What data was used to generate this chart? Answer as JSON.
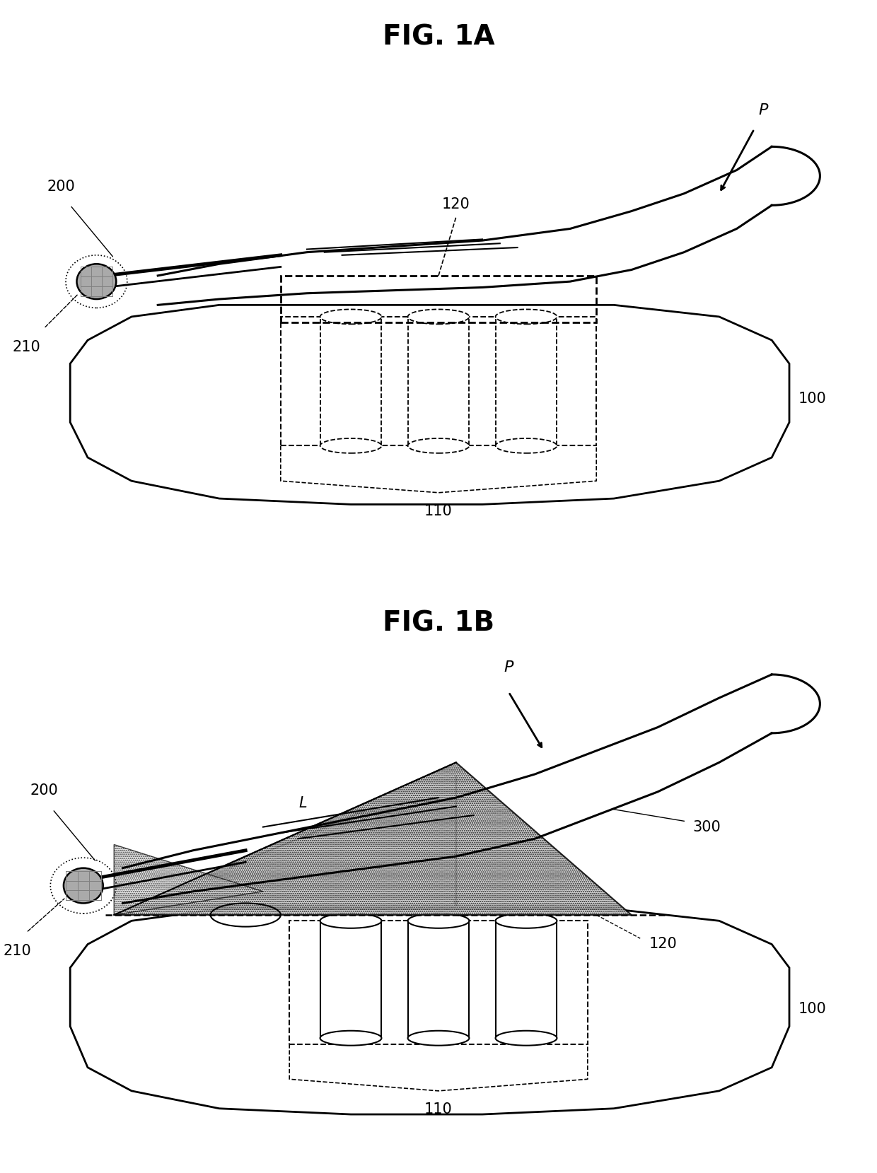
{
  "fig1a_title": "FIG. 1A",
  "fig1b_title": "FIG. 1B",
  "label_100": "100",
  "label_110": "110",
  "label_120": "120",
  "label_200": "200",
  "label_210": "210",
  "label_300": "300",
  "label_L": "L",
  "label_P": "P",
  "bg_color": "#ffffff",
  "title_fontsize": 28,
  "label_fontsize": 15
}
